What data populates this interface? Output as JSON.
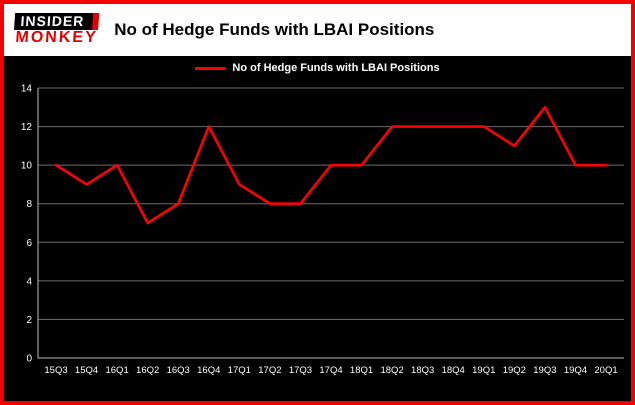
{
  "header": {
    "logo_line1": "INSIDER",
    "logo_line2": "MONKEY",
    "title": "No of Hedge Funds with LBAI Positions"
  },
  "legend": {
    "label": "No of Hedge Funds with LBAI Positions"
  },
  "chart_data": {
    "type": "line",
    "title": "No of Hedge Funds with LBAI Positions",
    "categories": [
      "15Q3",
      "15Q4",
      "16Q1",
      "16Q2",
      "16Q3",
      "16Q4",
      "17Q1",
      "17Q2",
      "17Q3",
      "17Q4",
      "18Q1",
      "18Q2",
      "18Q3",
      "18Q4",
      "19Q1",
      "19Q2",
      "19Q3",
      "19Q4",
      "20Q1"
    ],
    "values": [
      10,
      9,
      10,
      7,
      8,
      12,
      9,
      8,
      8,
      10,
      10,
      12,
      12,
      12,
      12,
      11,
      13,
      10,
      10
    ],
    "xlabel": "",
    "ylabel": "",
    "ylim": [
      0,
      14
    ],
    "yticks": [
      0,
      2,
      4,
      6,
      8,
      10,
      12,
      14
    ],
    "grid": true,
    "legend_position": "top-center",
    "line_color": "#ff0000",
    "grid_color": "#6e6e6e",
    "axis_color": "#bbbbbb",
    "tick_color": "#ffffff",
    "background": "#000000",
    "frame_border": "#f40000",
    "header_background": "#ffffff"
  }
}
